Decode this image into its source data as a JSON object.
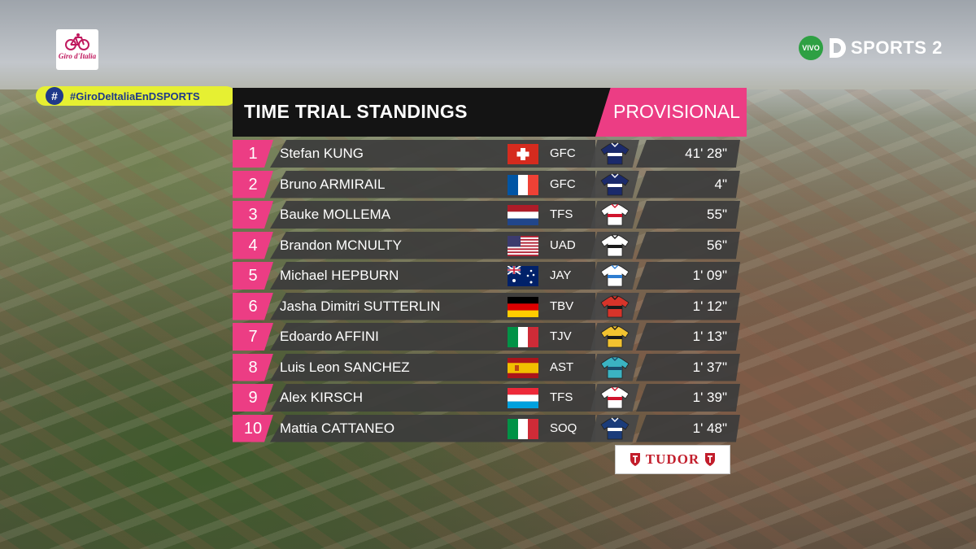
{
  "broadcast": {
    "event_logo_text": "Giro d'Italia",
    "live_label": "VIVO",
    "channel_name": "SPORTS 2",
    "hashtag": "#GiroDeItaliaEnDSPORTS"
  },
  "board": {
    "title": "TIME TRIAL STANDINGS",
    "status": "PROVISIONAL",
    "rows": [
      {
        "rank": "1",
        "name": "Stefan KUNG",
        "flag": "switzerland-flag",
        "team": "GFC",
        "kit": "gfc-jersey",
        "time": "41' 28\""
      },
      {
        "rank": "2",
        "name": "Bruno ARMIRAIL",
        "flag": "france-flag",
        "team": "GFC",
        "kit": "gfc-jersey",
        "time": "4\""
      },
      {
        "rank": "3",
        "name": "Bauke MOLLEMA",
        "flag": "netherlands-flag",
        "team": "TFS",
        "kit": "tfs-jersey",
        "time": "55\""
      },
      {
        "rank": "4",
        "name": "Brandon MCNULTY",
        "flag": "usa-flag",
        "team": "UAD",
        "kit": "uad-jersey",
        "time": "56\""
      },
      {
        "rank": "5",
        "name": "Michael HEPBURN",
        "flag": "australia-flag",
        "team": "JAY",
        "kit": "jay-jersey",
        "time": "1' 09\""
      },
      {
        "rank": "6",
        "name": "Jasha Dimitri SUTTERLIN",
        "flag": "germany-flag",
        "team": "TBV",
        "kit": "tbv-jersey",
        "time": "1' 12\""
      },
      {
        "rank": "7",
        "name": "Edoardo AFFINI",
        "flag": "italy-flag",
        "team": "TJV",
        "kit": "tjv-jersey",
        "time": "1' 13\""
      },
      {
        "rank": "8",
        "name": "Luis Leon SANCHEZ",
        "flag": "spain-flag",
        "team": "AST",
        "kit": "ast-jersey",
        "time": "1' 37\""
      },
      {
        "rank": "9",
        "name": "Alex KIRSCH",
        "flag": "luxembourg-flag",
        "team": "TFS",
        "kit": "tfs-jersey",
        "time": "1' 39\""
      },
      {
        "rank": "10",
        "name": "Mattia CATTANEO",
        "flag": "italy-flag",
        "team": "SOQ",
        "kit": "soq-jersey",
        "time": "1' 48\""
      }
    ]
  },
  "sponsor": {
    "name": "TUDOR"
  },
  "colors": {
    "accent_pink": "#ec3d84",
    "row_bg": "#3c3c3c",
    "hashtag_bg": "#e6f032",
    "hashtag_fg": "#1f3a8a"
  }
}
